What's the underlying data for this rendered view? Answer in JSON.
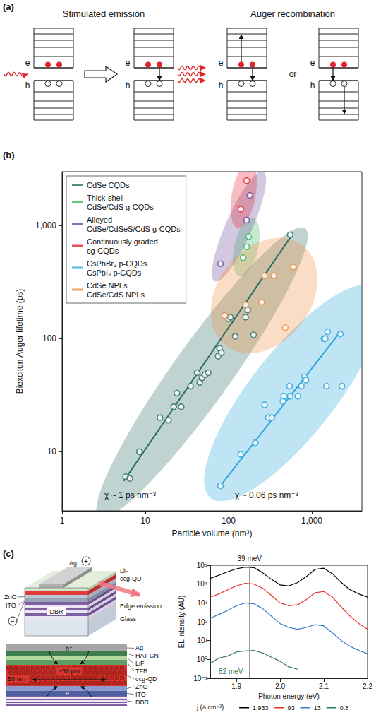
{
  "panel_labels": [
    "(a)",
    "(b)",
    "(c)"
  ],
  "panel_a": {
    "titles": [
      "Stimulated emission",
      "Auger recombination"
    ],
    "electron_label": "e",
    "hole_label": "h",
    "connector": "or"
  },
  "chart_data": [
    {
      "type": "scatter",
      "log": true,
      "x_label": "Particle volume (nm³)",
      "y_label": "Biexciton Auger lifetime (ps)",
      "xlim": [
        1,
        4000
      ],
      "xticks": [
        1,
        10,
        100,
        {
          "value": 1000,
          "label": "1,000"
        }
      ],
      "ylim": [
        3,
        3000
      ],
      "yticks": [
        10,
        100,
        {
          "value": 1000,
          "label": "1,000"
        }
      ],
      "grid": false,
      "legend": "top-left",
      "series": [
        {
          "name": "CdSe CQDs",
          "color": "#2b6f63",
          "marker": "circle",
          "x": [
            5.8,
            6.5,
            8.5,
            15,
            19,
            22,
            24,
            27,
            35,
            42,
            45,
            48,
            52,
            57,
            75,
            78,
            82,
            100,
            105,
            120,
            160,
            170,
            200,
            550
          ],
          "values": [
            6,
            5.8,
            10,
            20,
            19,
            25,
            33,
            25,
            38,
            50,
            41,
            45,
            48,
            50,
            70,
            82,
            75,
            150,
            155,
            105,
            155,
            180,
            108,
            830
          ],
          "fit_line": {
            "x": [
              5.5,
              560
            ],
            "values": [
              5.5,
              800
            ]
          }
        },
        {
          "name": "Thick-shell\nCdSe/CdS g-CQDs",
          "color": "#3cb868",
          "marker": "circle",
          "x": [
            150,
            165,
            175
          ],
          "values": [
            520,
            650,
            800
          ]
        },
        {
          "name": "Alloyed\nCdSe/CdSeS/CdS g-CQDs",
          "color": "#6b4c9a",
          "marker": "circle",
          "x": [
            80,
            165,
            180
          ],
          "values": [
            460,
            1120,
            1850
          ]
        },
        {
          "name": "Continuously graded\ncg-CQDs",
          "color": "#e3262e",
          "marker": "circle",
          "x": [
            140,
            165
          ],
          "values": [
            1400,
            2500
          ]
        },
        {
          "name": "CsPbBr₃ p-CQDs\nCsPbI₃ p-CQDs",
          "color": "#2aa5dc",
          "marker": "circle",
          "x": [
            80,
            140,
            210,
            270,
            300,
            330,
            450,
            460,
            540,
            550,
            680,
            750,
            820,
            850,
            1400,
            1450,
            1500,
            1550,
            2200,
            2300
          ],
          "values": [
            5,
            9.5,
            12,
            26,
            20,
            20,
            28,
            31,
            38,
            31,
            31,
            38,
            46,
            43,
            100,
            100,
            38,
            115,
            110,
            38
          ],
          "fit_line": {
            "x": [
              80,
              2200
            ],
            "values": [
              5,
              115
            ]
          }
        },
        {
          "name": "CdSe NPLs\nCdSe/CdS NPLs",
          "color": "#f28a3c",
          "marker": "circle",
          "x": [
            90,
            160,
            250,
            270,
            350,
            480,
            600
          ],
          "values": [
            160,
            200,
            210,
            360,
            360,
            125,
            430
          ]
        }
      ],
      "annotations": [
        "χ ~ 1 ps nm⁻³",
        "χ ~ 0.06 ps nm⁻³"
      ]
    },
    {
      "type": "line",
      "log": "y",
      "x_label": "Photon energy (eV)",
      "y_label": "EL intensity (AU)",
      "x": [
        1.84,
        1.86,
        1.88,
        1.9,
        1.92,
        1.94,
        1.96,
        1.98,
        2,
        2.02,
        2.04,
        2.06,
        2.08,
        2.1,
        2.12,
        2.14,
        2.16,
        2.18,
        2.2
      ],
      "xlim": [
        1.84,
        2.2
      ],
      "xticks": [
        1.9,
        {
          "value": 2,
          "label": "2.0"
        },
        2.1,
        2.2
      ],
      "ylim": [
        0.1,
        100000
      ],
      "yticks": [
        {
          "value": 0.1,
          "label": "10⁻¹"
        },
        {
          "value": 1,
          "label": "10⁰"
        },
        {
          "value": 10,
          "label": "10¹"
        },
        {
          "value": 100,
          "label": "10²"
        },
        {
          "value": 1000,
          "label": "10³"
        },
        {
          "value": 10000,
          "label": "10⁴"
        },
        {
          "value": 100000,
          "label": "10⁵"
        }
      ],
      "grid": false,
      "legend": "bottom",
      "legend_title": "j (A cm⁻²)",
      "series": [
        {
          "name": "1,933",
          "color": "#000000",
          "values": [
            20000,
            30000,
            45000,
            65000,
            80000,
            75000,
            40000,
            18000,
            9000,
            8000,
            12000,
            25000,
            60000,
            70000,
            35000,
            12000,
            5000,
            3000,
            2000
          ]
        },
        {
          "name": "93",
          "color": "#e8302a",
          "values": [
            2000,
            3000,
            5000,
            8000,
            11000,
            10000,
            6000,
            2500,
            1000,
            700,
            800,
            1500,
            3500,
            4000,
            2000,
            600,
            200,
            80,
            40
          ]
        },
        {
          "name": "13",
          "color": "#3a78c8",
          "values": [
            150,
            250,
            400,
            700,
            1000,
            900,
            500,
            200,
            80,
            50,
            40,
            50,
            70,
            60,
            25,
            10,
            5,
            3,
            2
          ]
        },
        {
          "name": "0.8",
          "color": "#2d7a50",
          "values": [
            0.6,
            1.2,
            1.5,
            2.5,
            2.8,
            3,
            2.2,
            1.3,
            0.8,
            0.4,
            0.3,
            null,
            null,
            null,
            null,
            null,
            null,
            null,
            null
          ]
        }
      ],
      "reference_x": 1.93,
      "annotations": [
        "39 meV",
        "82 meV"
      ]
    }
  ],
  "panel_c_schematic": {
    "device": {
      "top_electrode": "Ag",
      "plus": "+",
      "lif": "LiF",
      "qd": "ccg-QD",
      "emission": "Edge emission",
      "zno": "ZnO",
      "ito": "ITO",
      "minus": "−",
      "dbr": "DBR",
      "substrate": "Glass"
    },
    "cross_section": {
      "layers": [
        "Ag",
        "HAT-CN",
        "LiF",
        "TFB",
        "ccg-QD",
        "ZnO",
        "ITO",
        "DBR"
      ],
      "hole": "h⁺",
      "electron": "e⁻",
      "width_label": "~30 μm",
      "thickness_label": "50 nm"
    }
  }
}
